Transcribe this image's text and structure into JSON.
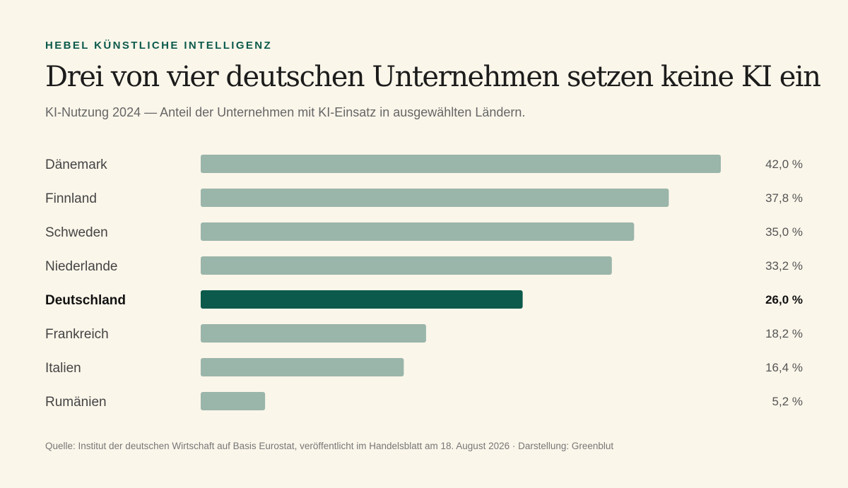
{
  "header": {
    "eyebrow": "HEBEL KÜNSTLICHE INTELLIGENZ",
    "title": "Drei von vier deutschen Unternehmen setzen keine KI ein",
    "subtitle": "KI-Nutzung 2024 — Anteil der Unternehmen mit KI-Einsatz in ausgewählten Ländern."
  },
  "footer": {
    "source": "Quelle: Institut der deutschen Wirtschaft auf Basis Eurostat, veröffentlicht im Handelsblatt am 18. August 2026 · Darstellung: Greenblut"
  },
  "colors": {
    "bar": "#9ab5aa",
    "highlight": "#0b5a4c",
    "label": "#444444",
    "highlight_label": "#111111"
  },
  "chart_data": {
    "type": "bar",
    "orientation": "horizontal",
    "categories": [
      "Dänemark",
      "Finnland",
      "Schweden",
      "Niederlande",
      "Deutschland",
      "Frankreich",
      "Italien",
      "Rumänien"
    ],
    "values": [
      42.0,
      37.8,
      35.0,
      33.2,
      26.0,
      18.2,
      16.4,
      5.2
    ],
    "value_labels": [
      "42,0 %",
      "37,8 %",
      "35,0 %",
      "33,2 %",
      "26,0 %",
      "18,2 %",
      "16,4 %",
      "5,2 %"
    ],
    "highlight": "Deutschland",
    "xlim": [
      0,
      42
    ],
    "grid": false,
    "legend": "none"
  }
}
